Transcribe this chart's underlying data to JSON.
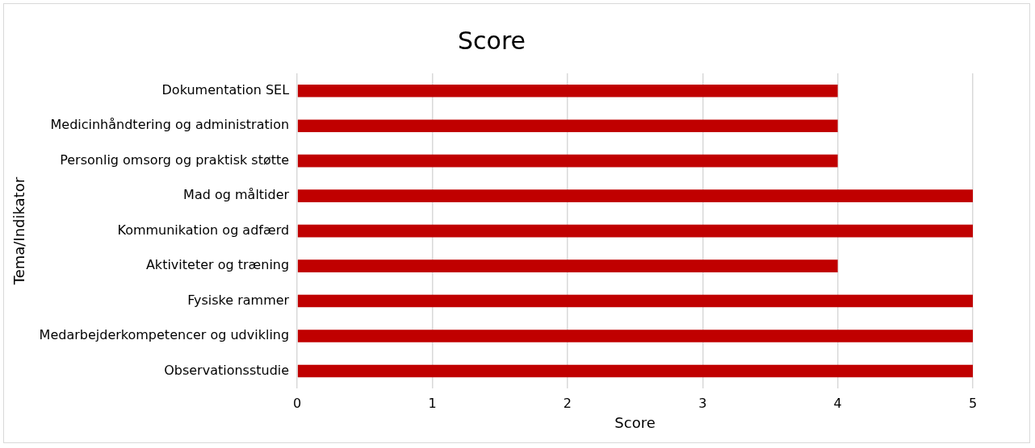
{
  "chart_data": {
    "type": "bar",
    "orientation": "horizontal",
    "title": "Score",
    "xlabel": "Score",
    "ylabel": "Tema/Indikator",
    "categories": [
      "Dokumentation SEL",
      "Medicinhåndtering og administration",
      "Personlig omsorg og praktisk støtte",
      "Mad og måltider",
      "Kommunikation og adfærd",
      "Aktiviteter og træning",
      "Fysiske rammer",
      "Medarbejderkompetencer og udvikling",
      "Observationsstudie"
    ],
    "values": [
      4,
      4,
      4,
      5,
      5,
      4,
      5,
      5,
      5
    ],
    "color": "#c00000",
    "xlim": [
      0,
      5
    ],
    "xticks": [
      0,
      1,
      2,
      3,
      4,
      5
    ],
    "grid": "x",
    "legend": false
  }
}
